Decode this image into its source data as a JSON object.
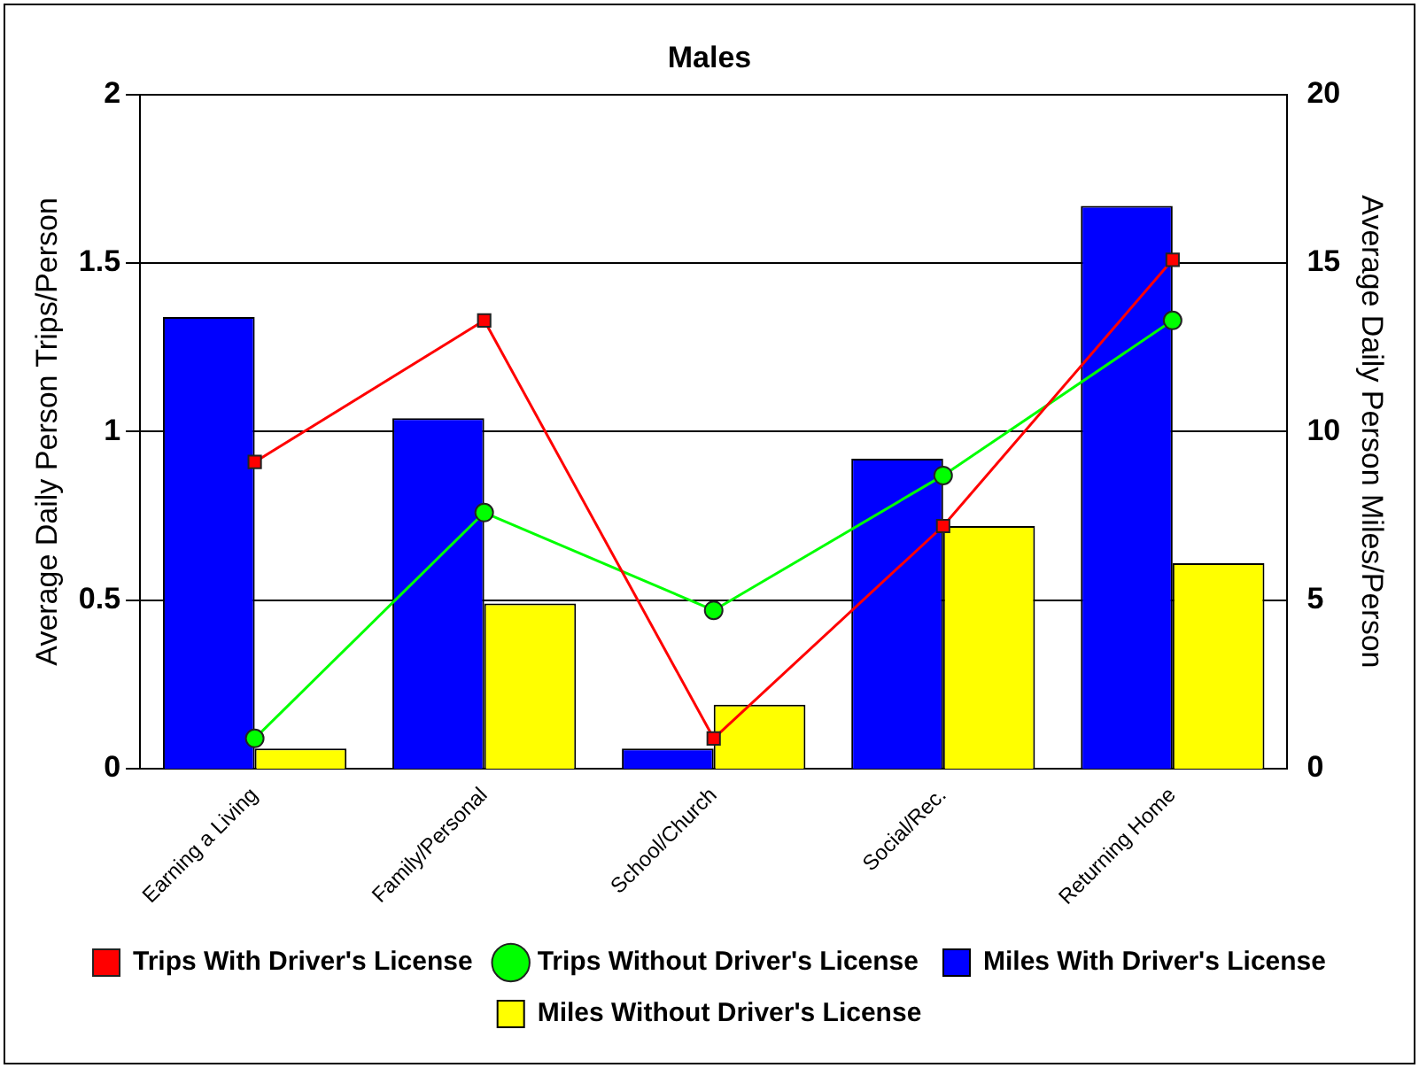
{
  "chart_data": {
    "type": "bar",
    "title": "Males",
    "ylabel": "Average Daily Person Trips/Person",
    "y2label": "Average Daily Person Miles/Person",
    "categories": [
      "Earning a Living",
      "Family/Personal",
      "School/Church",
      "Social/Rec.",
      "Returning Home"
    ],
    "series": [
      {
        "name": "Trips With Driver's License",
        "type": "line",
        "color": "#ff0000",
        "marker": "square",
        "values": [
          0.91,
          1.33,
          0.09,
          0.72,
          1.51
        ]
      },
      {
        "name": "Trips Without Driver's License",
        "type": "line",
        "color": "#00ff00",
        "marker": "circle",
        "values": [
          0.09,
          0.76,
          0.47,
          0.87,
          1.33
        ]
      },
      {
        "name": "Miles With Driver's License",
        "axis": "y2",
        "color": "#0000ff",
        "values": [
          13.4,
          10.4,
          0.6,
          9.2,
          16.7
        ]
      },
      {
        "name": "Miles Without Driver's License",
        "axis": "y2",
        "color": "#ffff00",
        "values": [
          0.6,
          4.9,
          1.9,
          7.2,
          6.1
        ]
      }
    ],
    "ylim": [
      0,
      2
    ],
    "yticks": [
      0,
      0.5,
      1,
      1.5,
      2
    ],
    "y2lim": [
      0,
      20
    ],
    "y2ticks": [
      0,
      5,
      10,
      15,
      20
    ],
    "grid": "y",
    "legend": "bottom"
  }
}
